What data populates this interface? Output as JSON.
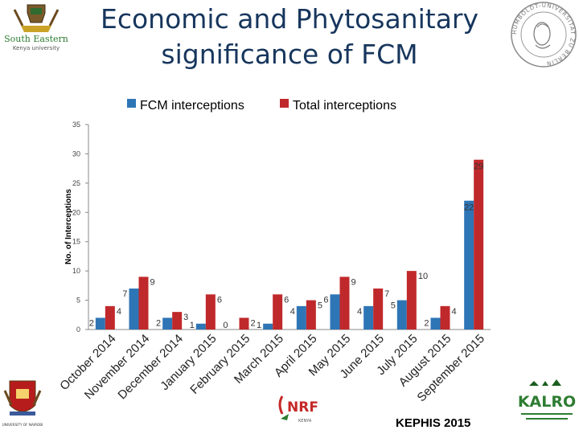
{
  "slide": {
    "title_line1": "Economic and Phytosanitary",
    "title_line2": "significance of FCM",
    "footer": "KEPHIS 2015"
  },
  "logos": {
    "top_left": {
      "line1": "South Eastern",
      "line2": "Kenya university"
    },
    "top_right": {
      "text": "HUMBOLDT-UNIVERSITÄT ZU BERLIN"
    },
    "bottom_left": {
      "text": "UNIVERSITY OF NAIROBI"
    },
    "bottom_center": {
      "text": "NRF",
      "sub": "KENYA"
    },
    "bottom_right": {
      "text": "KALRO"
    }
  },
  "colors": {
    "title": "#17365d",
    "fcm": "#2e75b6",
    "total": "#c0292b"
  },
  "chart_data": {
    "type": "bar",
    "title": "",
    "xlabel": "",
    "ylabel": "No. of Interceptions",
    "ylim": [
      0,
      35
    ],
    "yticks": [
      0,
      5,
      10,
      15,
      20,
      25,
      30,
      35
    ],
    "categories": [
      "October 2014",
      "November 2014",
      "December 2014",
      "January 2015",
      "February 2015",
      "March 2015",
      "April 2015",
      "May 2015",
      "June 2015",
      "July 2015",
      "August 2015",
      "September 2015"
    ],
    "series": [
      {
        "name": "FCM interceptions",
        "values": [
          2,
          7,
          2,
          1,
          0,
          1,
          4,
          6,
          4,
          5,
          2,
          22
        ]
      },
      {
        "name": "Total interceptions",
        "values": [
          4,
          9,
          3,
          6,
          2,
          6,
          5,
          9,
          7,
          10,
          4,
          29
        ]
      }
    ],
    "legend": "top-center"
  }
}
